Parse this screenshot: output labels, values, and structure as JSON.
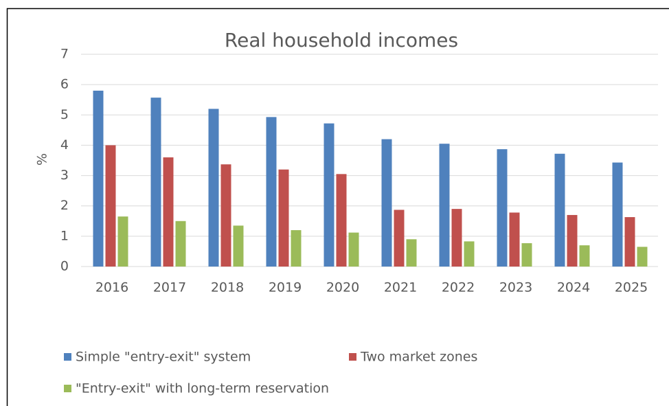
{
  "chart_data": {
    "type": "bar",
    "title": "Real household incomes",
    "y_label": "%",
    "categories": [
      "2016",
      "2017",
      "2018",
      "2019",
      "2020",
      "2021",
      "2022",
      "2023",
      "2024",
      "2025"
    ],
    "series": [
      {
        "name": "Simple \"entry-exit\" system",
        "color": "#4f81bd",
        "values": [
          5.8,
          5.57,
          5.2,
          4.93,
          4.72,
          4.2,
          4.05,
          3.87,
          3.72,
          3.43
        ]
      },
      {
        "name": "Two market zones",
        "color": "#c0504d",
        "values": [
          4.0,
          3.6,
          3.37,
          3.2,
          3.05,
          1.87,
          1.9,
          1.78,
          1.7,
          1.63
        ]
      },
      {
        "name": "\"Entry-exit\" with long-term reservation",
        "color": "#9bbb59",
        "values": [
          1.65,
          1.5,
          1.35,
          1.2,
          1.12,
          0.9,
          0.83,
          0.77,
          0.7,
          0.65
        ]
      }
    ],
    "ylim": [
      0,
      7
    ],
    "yticks": [
      0,
      1,
      2,
      3,
      4,
      5,
      6,
      7
    ],
    "grid": true
  }
}
